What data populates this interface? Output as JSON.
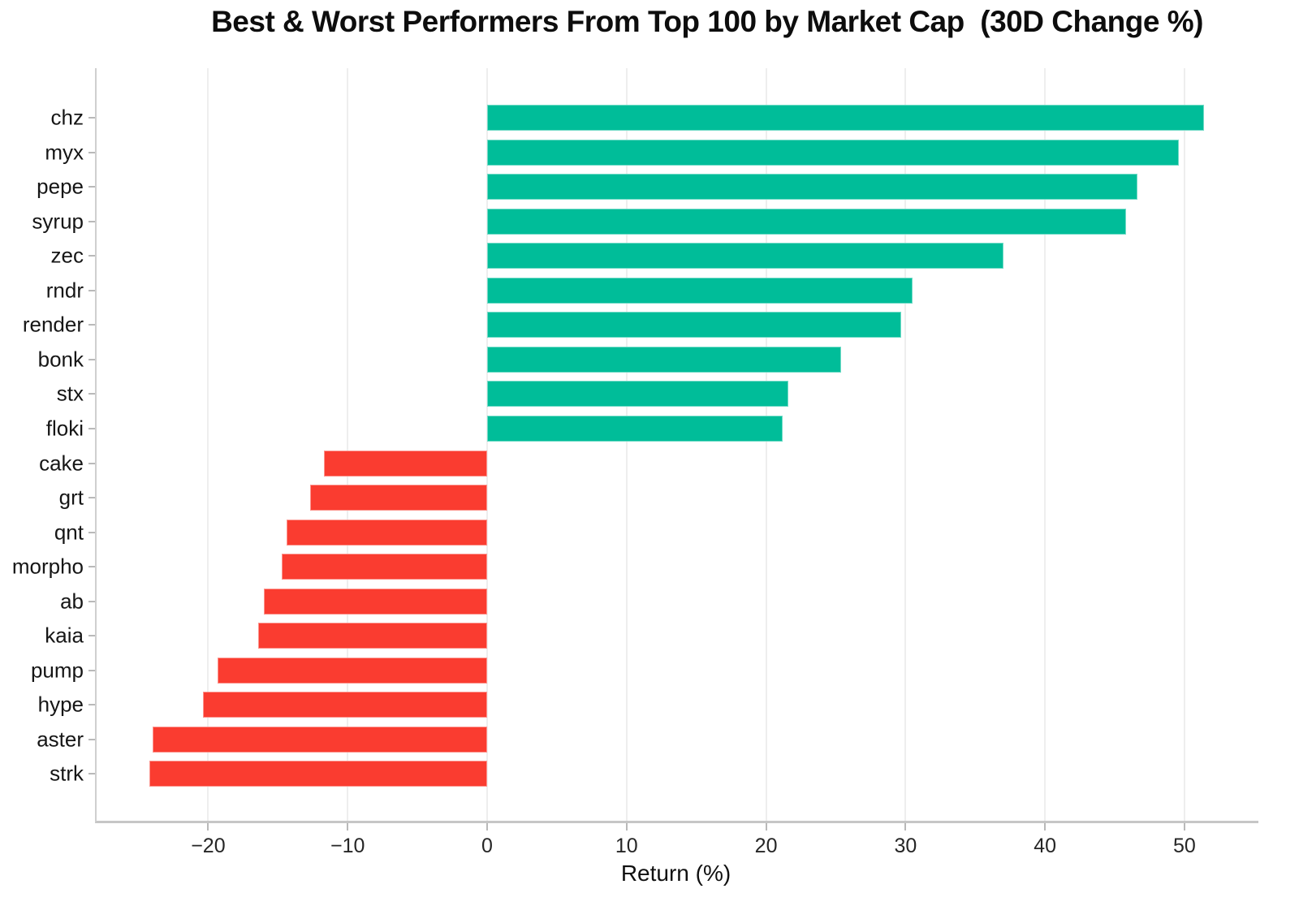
{
  "chart_data": {
    "type": "bar",
    "orientation": "horizontal",
    "title": "Best & Worst Performers From Top 100 by Market Cap  (30D Change %)",
    "xlabel": "Return (%)",
    "ylabel": "",
    "categories": [
      "chz",
      "myx",
      "pepe",
      "syrup",
      "zec",
      "rndr",
      "render",
      "bonk",
      "stx",
      "floki",
      "cake",
      "grt",
      "qnt",
      "morpho",
      "ab",
      "kaia",
      "pump",
      "hype",
      "aster",
      "strk"
    ],
    "values": [
      51.4,
      49.6,
      46.6,
      45.8,
      37.0,
      30.5,
      29.7,
      25.4,
      21.6,
      21.2,
      -11.7,
      -12.7,
      -14.4,
      -14.7,
      -16.0,
      -16.4,
      -19.3,
      -20.4,
      -24.0,
      -24.2
    ],
    "xlim": [
      -28.0,
      55.3
    ],
    "xticks": [
      -20,
      -10,
      0,
      10,
      20,
      30,
      40,
      50
    ],
    "xtick_labels": [
      "−20",
      "−10",
      "0",
      "10",
      "20",
      "30",
      "40",
      "50"
    ],
    "grid": "vertical-on",
    "legend": "none",
    "positive_color": "#00bd99",
    "negative_color": "#fa3c30",
    "grid_color": "#eeeeee",
    "spine_color": "#c6c6c6",
    "tick_color": "#b9b9b9"
  }
}
